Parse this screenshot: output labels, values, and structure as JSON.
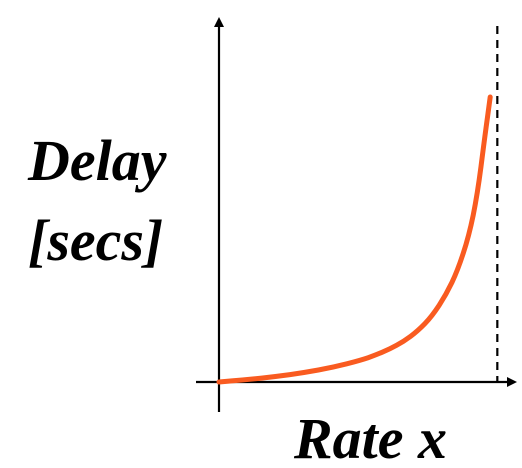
{
  "chart_data": {
    "type": "line",
    "title": "",
    "xlabel": "Rate x",
    "ylabel_lines": [
      "Delay",
      "[secs]"
    ],
    "xlim": [
      0,
      1
    ],
    "ylim": [
      0,
      1
    ],
    "asymptote_x": 0.98,
    "grid": false,
    "legend": "none",
    "series": [
      {
        "x": [
          0,
          0.1,
          0.2,
          0.3,
          0.4,
          0.5,
          0.55,
          0.6,
          0.65,
          0.7,
          0.75,
          0.8,
          0.84,
          0.88,
          0.91,
          0.935,
          0.955
        ],
        "y": [
          0,
          0.0085,
          0.0192,
          0.0329,
          0.0512,
          0.0768,
          0.0939,
          0.1152,
          0.1422,
          0.1792,
          0.2304,
          0.3072,
          0.3908,
          0.512,
          0.6583,
          0.8533,
          1.0
        ]
      }
    ],
    "colors": {
      "curve": "#f95b20",
      "axes": "#000000",
      "asymptote": "#000000"
    }
  }
}
